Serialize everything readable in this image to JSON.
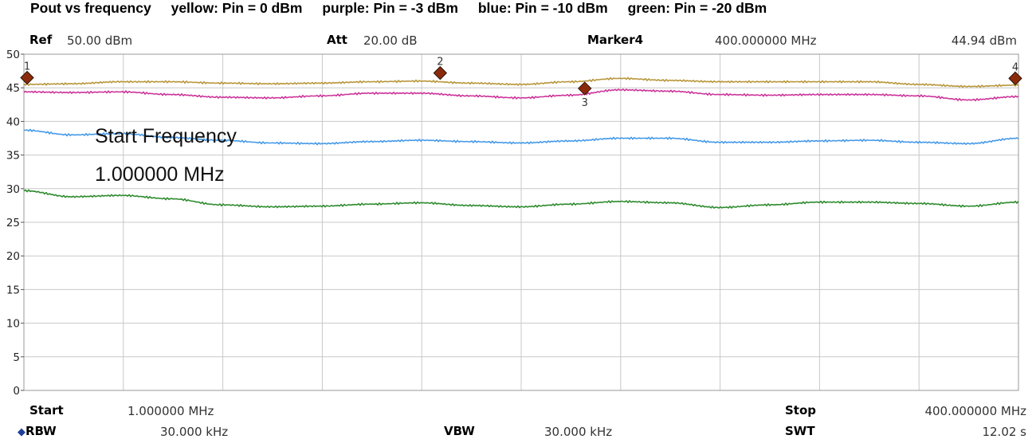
{
  "title_parts": [
    "Pout vs frequency",
    "yellow: Pin = 0 dBm",
    "purple: Pin = -3 dBm",
    "blue: Pin = -10 dBm",
    "green: Pin = -20 dBm"
  ],
  "header": {
    "ref_label": "Ref",
    "ref_value": "50.00 dBm",
    "att_label": "Att",
    "att_value": "20.00 dB",
    "marker_label": "Marker4",
    "marker_freq": "400.000000 MHz",
    "marker_value": "44.94 dBm"
  },
  "footer": {
    "start_label": "Start",
    "start_value": "1.000000 MHz",
    "stop_label": "Stop",
    "stop_value": "400.000000 MHz",
    "rbw_label": "RBW",
    "rbw_value": "30.000 kHz",
    "vbw_label": "VBW",
    "vbw_value": "30.000 kHz",
    "swt_label": "SWT",
    "swt_value": "12.02 s"
  },
  "annotation": {
    "line1": "Start Frequency",
    "line2": "1.000000 MHz"
  },
  "colors": {
    "yellow": "#b8963a",
    "purple": "#cc3399",
    "blue": "#4499e8",
    "green": "#2e8b2e",
    "grid": "#c8c8c8",
    "marker_fill": "#8b2a0a"
  },
  "chart_data": {
    "type": "line",
    "title": "Pout vs frequency",
    "xlabel": "",
    "ylabel": "",
    "xlim": [
      1,
      400
    ],
    "ylim": [
      0,
      50
    ],
    "yticks": [
      0,
      5,
      10,
      15,
      20,
      25,
      30,
      35,
      40,
      45,
      50
    ],
    "grid": true,
    "x": [
      1,
      20,
      40,
      60,
      80,
      100,
      120,
      140,
      160,
      180,
      200,
      220,
      240,
      260,
      280,
      300,
      320,
      340,
      360,
      380,
      400
    ],
    "series": [
      {
        "name": "yellow: Pin = 0 dBm",
        "color": "#b8963a",
        "values": [
          45.5,
          45.6,
          45.9,
          45.9,
          45.7,
          45.6,
          45.7,
          45.9,
          46.0,
          45.7,
          45.5,
          45.9,
          46.4,
          46.1,
          45.9,
          45.9,
          45.9,
          45.9,
          45.5,
          45.2,
          45.4
        ]
      },
      {
        "name": "purple: Pin = -3 dBm",
        "color": "#cc3399",
        "values": [
          44.4,
          44.3,
          44.4,
          44.0,
          43.6,
          43.5,
          43.8,
          44.2,
          44.2,
          43.8,
          43.5,
          43.9,
          44.7,
          44.5,
          44.0,
          43.9,
          44.0,
          44.0,
          43.8,
          43.2,
          43.7
        ]
      },
      {
        "name": "blue: Pin = -10 dBm",
        "color": "#4499e8",
        "values": [
          38.7,
          38.0,
          38.2,
          37.6,
          37.2,
          36.8,
          36.7,
          37.0,
          37.2,
          37.0,
          36.8,
          37.1,
          37.5,
          37.5,
          36.9,
          36.9,
          37.1,
          37.2,
          36.9,
          36.7,
          37.5
        ]
      },
      {
        "name": "green: Pin = -20 dBm",
        "color": "#2e8b2e",
        "values": [
          29.7,
          28.8,
          29.0,
          28.5,
          27.6,
          27.3,
          27.4,
          27.7,
          27.9,
          27.5,
          27.3,
          27.7,
          28.1,
          27.9,
          27.2,
          27.6,
          28.0,
          28.0,
          27.8,
          27.4,
          28.0
        ]
      }
    ],
    "markers": [
      {
        "label": "1",
        "x": 1,
        "y": 46.5
      },
      {
        "label": "2",
        "x": 168,
        "y": 47.2
      },
      {
        "label": "3",
        "x": 226,
        "y": 44.9
      },
      {
        "label": "4",
        "x": 400,
        "y": 46.4
      }
    ]
  }
}
